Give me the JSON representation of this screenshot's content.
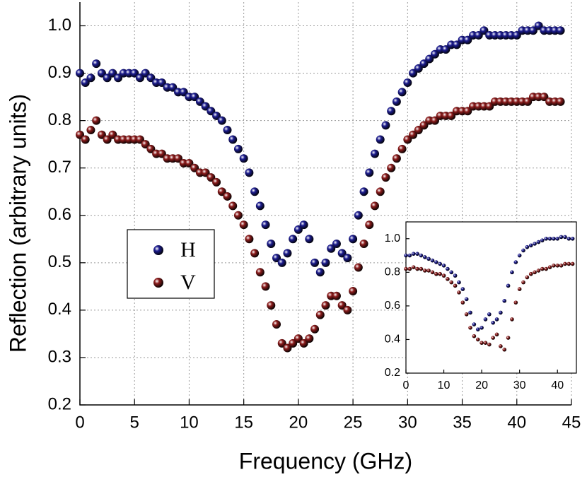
{
  "chart_data": [
    {
      "type": "scatter",
      "x_label": "Frequency (GHz)",
      "y_label": "Reflection (arbitrary units)",
      "xlim": [
        0,
        45
      ],
      "ylim": [
        0.2,
        1.05
      ],
      "xticks": [
        0,
        5,
        10,
        15,
        20,
        25,
        30,
        35,
        40,
        45
      ],
      "yticks": [
        0.2,
        0.3,
        0.4,
        0.5,
        0.6,
        0.7,
        0.8,
        0.9,
        {
          "value": 1,
          "label": "1.0"
        }
      ],
      "grid": true,
      "legend": "center left",
      "x": [
        0,
        0.5,
        1,
        1.5,
        2,
        2.5,
        3,
        3.5,
        4,
        4.5,
        5,
        5.5,
        6,
        6.5,
        7,
        7.5,
        8,
        8.5,
        9,
        9.5,
        10,
        10.5,
        11,
        11.5,
        12,
        12.5,
        13,
        13.5,
        14,
        14.5,
        15,
        15.5,
        16,
        16.5,
        17,
        17.5,
        18,
        18.5,
        19,
        19.5,
        20,
        20.5,
        21,
        21.5,
        22,
        22.5,
        23,
        23.5,
        24,
        24.5,
        25,
        25.5,
        26,
        26.5,
        27,
        27.5,
        28,
        28.5,
        29,
        29.5,
        30,
        30.5,
        31,
        31.5,
        32,
        32.5,
        33,
        33.5,
        34,
        34.5,
        35,
        35.5,
        36,
        36.5,
        37,
        37.5,
        38,
        38.5,
        39,
        39.5,
        40,
        40.5,
        41,
        41.5,
        42,
        42.5,
        43,
        43.5,
        44
      ],
      "series": [
        {
          "name": "H",
          "color": "#1c1c8f",
          "values": [
            0.9,
            0.88,
            0.89,
            0.92,
            0.9,
            0.89,
            0.9,
            0.89,
            0.9,
            0.9,
            0.9,
            0.89,
            0.9,
            0.89,
            0.88,
            0.88,
            0.87,
            0.87,
            0.86,
            0.86,
            0.85,
            0.85,
            0.84,
            0.83,
            0.82,
            0.81,
            0.8,
            0.78,
            0.76,
            0.74,
            0.72,
            0.69,
            0.65,
            0.62,
            0.58,
            0.54,
            0.51,
            0.5,
            0.52,
            0.55,
            0.57,
            0.58,
            0.55,
            0.5,
            0.48,
            0.5,
            0.53,
            0.54,
            0.52,
            0.51,
            0.55,
            0.6,
            0.65,
            0.69,
            0.73,
            0.76,
            0.79,
            0.82,
            0.84,
            0.86,
            0.88,
            0.9,
            0.91,
            0.92,
            0.93,
            0.94,
            0.95,
            0.95,
            0.96,
            0.96,
            0.97,
            0.97,
            0.98,
            0.98,
            0.99,
            0.98,
            0.98,
            0.98,
            0.98,
            0.98,
            0.98,
            0.99,
            0.99,
            0.99,
            1.0,
            0.99,
            0.99,
            0.99,
            0.99
          ]
        },
        {
          "name": "V",
          "color": "#8c1c1c",
          "values": [
            0.77,
            0.76,
            0.78,
            0.8,
            0.77,
            0.76,
            0.77,
            0.76,
            0.76,
            0.76,
            0.76,
            0.76,
            0.75,
            0.74,
            0.73,
            0.73,
            0.72,
            0.72,
            0.72,
            0.71,
            0.71,
            0.7,
            0.69,
            0.69,
            0.68,
            0.67,
            0.65,
            0.64,
            0.62,
            0.6,
            0.58,
            0.55,
            0.52,
            0.48,
            0.45,
            0.41,
            0.37,
            0.33,
            0.32,
            0.33,
            0.34,
            0.33,
            0.34,
            0.36,
            0.39,
            0.41,
            0.43,
            0.43,
            0.41,
            0.4,
            0.44,
            0.49,
            0.54,
            0.58,
            0.62,
            0.65,
            0.68,
            0.7,
            0.72,
            0.74,
            0.76,
            0.77,
            0.78,
            0.79,
            0.8,
            0.8,
            0.81,
            0.81,
            0.81,
            0.82,
            0.82,
            0.82,
            0.83,
            0.83,
            0.83,
            0.83,
            0.84,
            0.84,
            0.84,
            0.84,
            0.84,
            0.84,
            0.84,
            0.85,
            0.85,
            0.85,
            0.84,
            0.84,
            0.84
          ]
        }
      ]
    },
    {
      "type": "scatter",
      "xlim": [
        0,
        45
      ],
      "ylim": [
        0.2,
        1.1
      ],
      "xticks": [
        0,
        10,
        20,
        30,
        40
      ],
      "yticks": [
        0.2,
        0.4,
        0.6,
        0.8,
        {
          "value": 1,
          "label": "1.0"
        }
      ],
      "grid": false,
      "x": [
        0,
        1,
        2,
        3,
        4,
        5,
        6,
        7,
        8,
        9,
        10,
        11,
        12,
        13,
        14,
        15,
        16,
        17,
        18,
        19,
        20,
        21,
        22,
        23,
        24,
        25,
        26,
        27,
        28,
        29,
        30,
        31,
        32,
        33,
        34,
        35,
        36,
        37,
        38,
        39,
        40,
        41,
        42,
        43,
        44
      ],
      "series": [
        {
          "color": "#1c1c8f",
          "values": [
            0.9,
            0.9,
            0.91,
            0.91,
            0.9,
            0.89,
            0.88,
            0.87,
            0.86,
            0.85,
            0.84,
            0.82,
            0.8,
            0.78,
            0.74,
            0.7,
            0.64,
            0.56,
            0.49,
            0.46,
            0.47,
            0.52,
            0.55,
            0.5,
            0.52,
            0.56,
            0.63,
            0.72,
            0.8,
            0.86,
            0.9,
            0.93,
            0.95,
            0.96,
            0.97,
            0.98,
            0.99,
            1.0,
            1.0,
            1.0,
            1.0,
            1.01,
            1.01,
            1.0,
            1.0
          ]
        },
        {
          "color": "#8c1c1c",
          "values": [
            0.82,
            0.82,
            0.83,
            0.82,
            0.82,
            0.81,
            0.81,
            0.8,
            0.79,
            0.79,
            0.78,
            0.76,
            0.74,
            0.72,
            0.68,
            0.62,
            0.55,
            0.47,
            0.42,
            0.4,
            0.38,
            0.38,
            0.37,
            0.41,
            0.43,
            0.36,
            0.34,
            0.41,
            0.52,
            0.62,
            0.7,
            0.74,
            0.77,
            0.79,
            0.8,
            0.81,
            0.82,
            0.82,
            0.83,
            0.84,
            0.84,
            0.84,
            0.85,
            0.85,
            0.85
          ]
        }
      ]
    }
  ]
}
